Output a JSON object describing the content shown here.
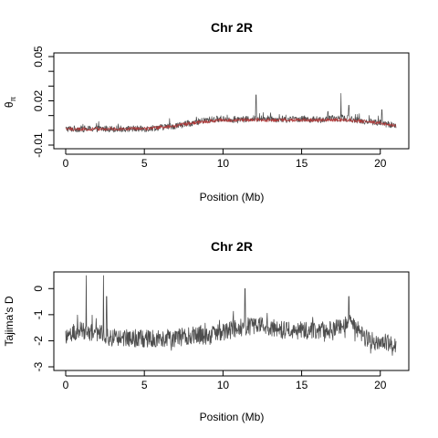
{
  "chart_data": [
    {
      "type": "line",
      "title": "Chr 2R",
      "xlabel": "Position (Mb)",
      "ylabel": "θ",
      "ylabel_sub": "π",
      "xlim": [
        0,
        21
      ],
      "ylim": [
        -0.01,
        0.05
      ],
      "xticks": [
        "0",
        "5",
        "10",
        "15",
        "20"
      ],
      "yticks": [
        "-0.01",
        "0.02",
        "0.05"
      ],
      "ytick_values": [
        -0.01,
        0.02,
        0.05
      ],
      "series": [
        {
          "color": "#4d4d4d",
          "x": [
            0,
            1,
            2,
            3,
            4,
            5,
            6,
            7,
            8,
            9,
            10,
            11,
            12,
            13,
            14,
            15,
            16,
            17,
            18,
            19,
            20,
            21
          ],
          "values": [
            0.001,
            0.001,
            0.001,
            0.001,
            0.001,
            0.001,
            0.002,
            0.003,
            0.005,
            0.007,
            0.008,
            0.007,
            0.008,
            0.008,
            0.007,
            0.008,
            0.007,
            0.008,
            0.008,
            0.006,
            0.005,
            0.003
          ]
        },
        {
          "color": "#b03a3a",
          "x": [
            0,
            1,
            2,
            3,
            4,
            5,
            6,
            7,
            8,
            9,
            10,
            11,
            12,
            13,
            14,
            15,
            16,
            17,
            18,
            19,
            20,
            21
          ],
          "values": [
            0.0008,
            0.0008,
            0.0009,
            0.0009,
            0.001,
            0.0012,
            0.002,
            0.003,
            0.005,
            0.006,
            0.007,
            0.007,
            0.007,
            0.007,
            0.007,
            0.007,
            0.007,
            0.007,
            0.007,
            0.006,
            0.005,
            0.003
          ]
        }
      ],
      "peaks": [
        {
          "x": 2.1,
          "y": 0.006
        },
        {
          "x": 6.6,
          "y": 0.008
        },
        {
          "x": 12.1,
          "y": 0.024
        },
        {
          "x": 17.5,
          "y": 0.025
        },
        {
          "x": 18.0,
          "y": 0.017
        },
        {
          "x": 20.1,
          "y": 0.014
        }
      ]
    },
    {
      "type": "line",
      "title": "Chr 2R",
      "xlabel": "Position (Mb)",
      "ylabel": "Tajima's D",
      "xlim": [
        0,
        21
      ],
      "ylim": [
        -3,
        0.5
      ],
      "xticks": [
        "0",
        "5",
        "10",
        "15",
        "20"
      ],
      "yticks": [
        "-3",
        "-2",
        "-1",
        "0"
      ],
      "ytick_values": [
        -3,
        -2,
        -1,
        0
      ],
      "series": [
        {
          "color": "#4d4d4d",
          "x": [
            0,
            1,
            2,
            3,
            4,
            5,
            6,
            7,
            8,
            9,
            10,
            11,
            12,
            13,
            14,
            15,
            16,
            17,
            18,
            19,
            20,
            21
          ],
          "values": [
            -1.8,
            -1.6,
            -1.7,
            -1.9,
            -1.9,
            -1.9,
            -1.9,
            -1.9,
            -1.8,
            -1.8,
            -1.7,
            -1.5,
            -1.4,
            -1.5,
            -1.6,
            -1.6,
            -1.6,
            -1.6,
            -1.2,
            -1.9,
            -2.0,
            -2.2
          ]
        }
      ],
      "peaks": [
        {
          "x": 1.3,
          "y": 0.5
        },
        {
          "x": 2.4,
          "y": 0.5
        },
        {
          "x": 2.6,
          "y": -0.3
        },
        {
          "x": 11.4,
          "y": 0.0
        },
        {
          "x": 18.0,
          "y": -0.3
        }
      ]
    }
  ]
}
